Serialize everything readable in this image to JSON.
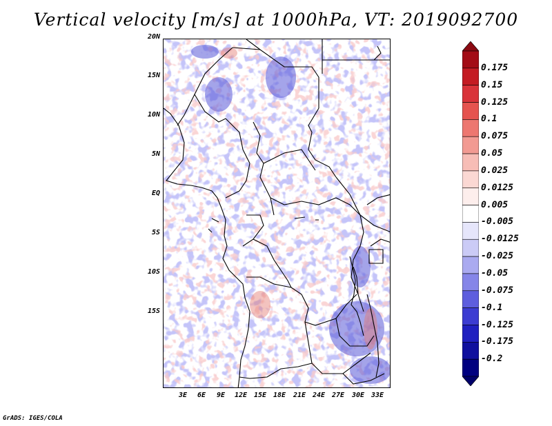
{
  "title": "Vertical velocity [m/s] at 1000hPa, VT: 2019092700",
  "map": {
    "lat_labels": [
      "20N",
      "15N",
      "10N",
      "5N",
      "EQ",
      "5S",
      "10S",
      "15S"
    ],
    "lon_labels": [
      "3E",
      "6E",
      "9E",
      "12E",
      "15E",
      "18E",
      "21E",
      "24E",
      "27E",
      "30E",
      "33E"
    ],
    "lat_range": [
      -20,
      25
    ],
    "lon_range": [
      0,
      35
    ]
  },
  "colorbar": {
    "labels": [
      "0.175",
      "0.15",
      "0.125",
      "0.1",
      "0.075",
      "0.05",
      "0.025",
      "0.0125",
      "0.005",
      "-0.005",
      "-0.0125",
      "-0.025",
      "-0.05",
      "-0.075",
      "-0.1",
      "-0.125",
      "-0.175",
      "-0.2"
    ],
    "colors": [
      "#a30c16",
      "#c41b23",
      "#d9333a",
      "#e5534f",
      "#ed7770",
      "#f29a92",
      "#f7bdb6",
      "#fbd8d3",
      "#fdeeec",
      "#ffffff",
      "#e6e6fb",
      "#cbcbf6",
      "#aaaaf0",
      "#8585e8",
      "#5e5ede",
      "#3c3cd2",
      "#2020c0",
      "#10109e",
      "#000080"
    ],
    "top_arrow_color": "#8b0a12",
    "bottom_arrow_color": "#00006a"
  },
  "footer": "GrADS: IGES/COLA"
}
